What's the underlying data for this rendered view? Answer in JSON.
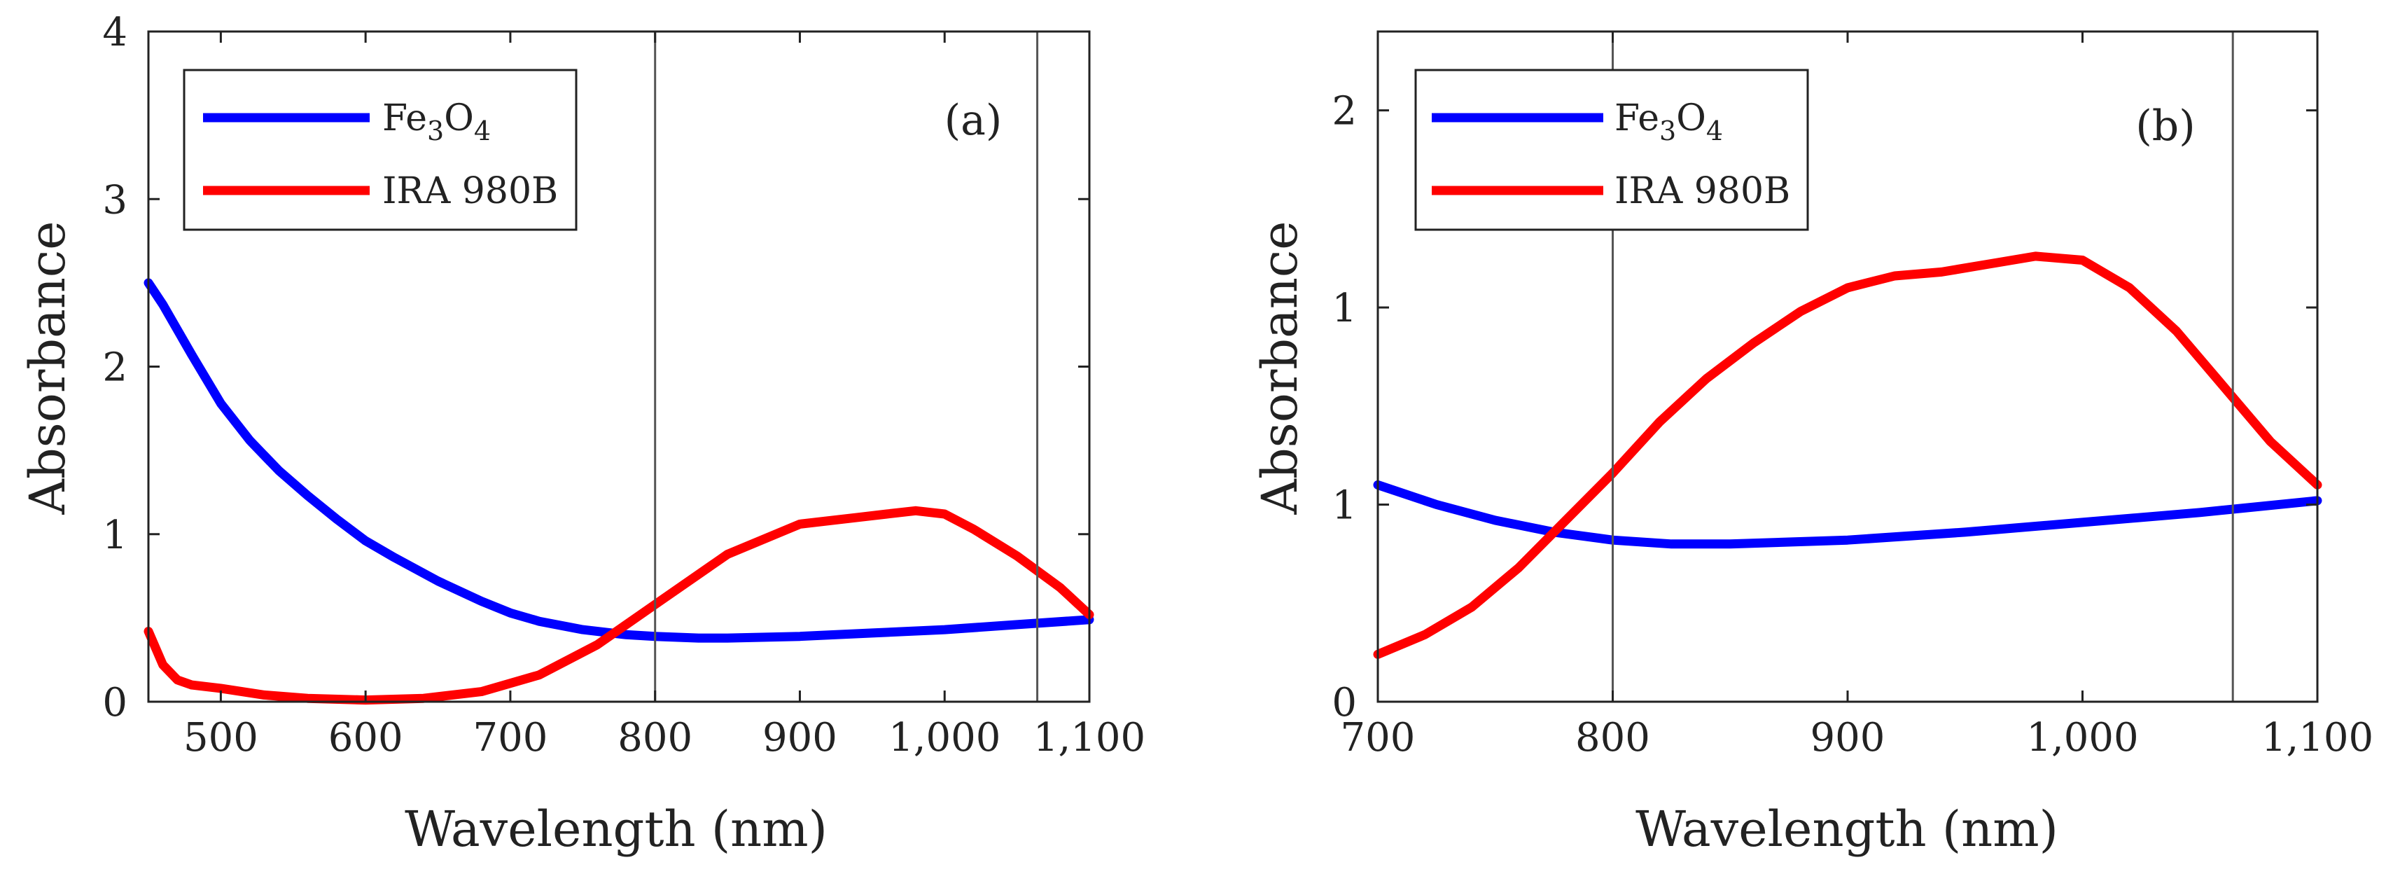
{
  "chart_data": [
    {
      "type": "line",
      "panel_label": "(a)",
      "xlabel": "Wavelength (nm)",
      "ylabel": "Absorbance",
      "xlim": [
        450,
        1100
      ],
      "ylim": [
        0,
        4
      ],
      "xticks": [
        500,
        600,
        700,
        800,
        900,
        1000,
        1100
      ],
      "xtick_labels": [
        "500",
        "600",
        "700",
        "800",
        "900",
        "1,000",
        "1,100"
      ],
      "yticks": [
        0,
        1,
        2,
        3,
        4
      ],
      "ytick_labels": [
        "0",
        "1",
        "2",
        "3",
        "4"
      ],
      "vlines": [
        800,
        1064
      ],
      "legend_position": "top-left",
      "series": [
        {
          "name": "Fe3O4",
          "name_main": "Fe",
          "name_sub1": "3",
          "name_mid": "O",
          "name_sub2": "4",
          "color": "#0000ff",
          "x": [
            450,
            460,
            480,
            500,
            520,
            540,
            560,
            580,
            600,
            620,
            650,
            680,
            700,
            720,
            750,
            780,
            800,
            830,
            850,
            900,
            950,
            1000,
            1050,
            1100
          ],
          "y": [
            2.5,
            2.37,
            2.07,
            1.78,
            1.56,
            1.38,
            1.23,
            1.09,
            0.96,
            0.86,
            0.72,
            0.6,
            0.53,
            0.48,
            0.43,
            0.4,
            0.39,
            0.38,
            0.38,
            0.39,
            0.41,
            0.43,
            0.46,
            0.49
          ]
        },
        {
          "name": "IRA 980B",
          "color": "#ff0000",
          "x": [
            450,
            460,
            470,
            480,
            500,
            530,
            560,
            600,
            640,
            680,
            720,
            760,
            800,
            850,
            900,
            940,
            960,
            980,
            1000,
            1020,
            1050,
            1080,
            1100
          ],
          "y": [
            0.42,
            0.22,
            0.13,
            0.1,
            0.08,
            0.04,
            0.02,
            0.01,
            0.02,
            0.06,
            0.16,
            0.34,
            0.58,
            0.88,
            1.06,
            1.1,
            1.12,
            1.14,
            1.12,
            1.03,
            0.87,
            0.68,
            0.52
          ]
        }
      ]
    },
    {
      "type": "line",
      "panel_label": "(b)",
      "xlabel": "Wavelength (nm)",
      "ylabel": "Absorbance",
      "xlim": [
        700,
        1100
      ],
      "ylim": [
        0,
        1.7
      ],
      "xticks": [
        700,
        800,
        900,
        1000,
        1100
      ],
      "xtick_labels": [
        "700",
        "800",
        "900",
        "1,000",
        "1,100"
      ],
      "yticks": [
        0,
        0.5,
        1,
        1.5
      ],
      "ytick_labels": [
        "0",
        "1",
        "1",
        "2"
      ],
      "vlines": [
        800,
        1064
      ],
      "legend_position": "top-left",
      "series": [
        {
          "name": "Fe3O4",
          "name_main": "Fe",
          "name_sub1": "3",
          "name_mid": "O",
          "name_sub2": "4",
          "color": "#0000ff",
          "x": [
            700,
            725,
            750,
            775,
            800,
            825,
            850,
            875,
            900,
            950,
            1000,
            1050,
            1100
          ],
          "y": [
            0.55,
            0.5,
            0.46,
            0.43,
            0.41,
            0.4,
            0.4,
            0.405,
            0.41,
            0.43,
            0.455,
            0.48,
            0.51
          ]
        },
        {
          "name": "IRA 980B",
          "color": "#ff0000",
          "x": [
            700,
            720,
            740,
            760,
            780,
            800,
            820,
            840,
            860,
            880,
            900,
            920,
            940,
            960,
            980,
            1000,
            1020,
            1040,
            1060,
            1080,
            1100
          ],
          "y": [
            0.12,
            0.17,
            0.24,
            0.34,
            0.46,
            0.58,
            0.71,
            0.82,
            0.91,
            0.99,
            1.05,
            1.08,
            1.09,
            1.11,
            1.13,
            1.12,
            1.05,
            0.94,
            0.8,
            0.66,
            0.55
          ]
        }
      ]
    }
  ]
}
